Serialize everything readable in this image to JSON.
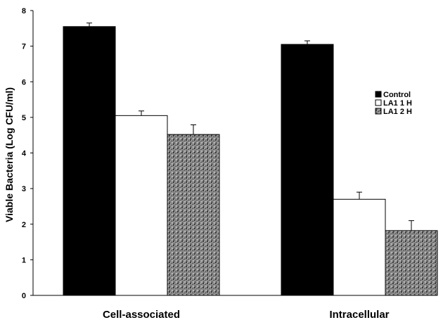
{
  "chart_data": {
    "type": "bar",
    "title": "",
    "xlabel": "",
    "ylabel": "Viable Bacteria (Log CFU/ml)",
    "ylim": [
      0,
      8
    ],
    "yticks": [
      0,
      1,
      2,
      3,
      4,
      5,
      6,
      7,
      8
    ],
    "categories": [
      "Cell-associated",
      "Intracellular"
    ],
    "series": [
      {
        "name": "Control",
        "values": [
          7.55,
          7.05
        ],
        "errors": [
          0.1,
          0.1
        ],
        "color": "#000000",
        "fill": "solid"
      },
      {
        "name": "LA1 1 H",
        "values": [
          5.05,
          2.7
        ],
        "errors": [
          0.13,
          0.2
        ],
        "color": "#ffffff",
        "fill": "outline"
      },
      {
        "name": "LA1 2 H",
        "values": [
          4.52,
          1.82
        ],
        "errors": [
          0.27,
          0.28
        ],
        "color": "#707070",
        "fill": "speckled"
      }
    ],
    "legend": {
      "position": "right"
    },
    "grid": false
  }
}
